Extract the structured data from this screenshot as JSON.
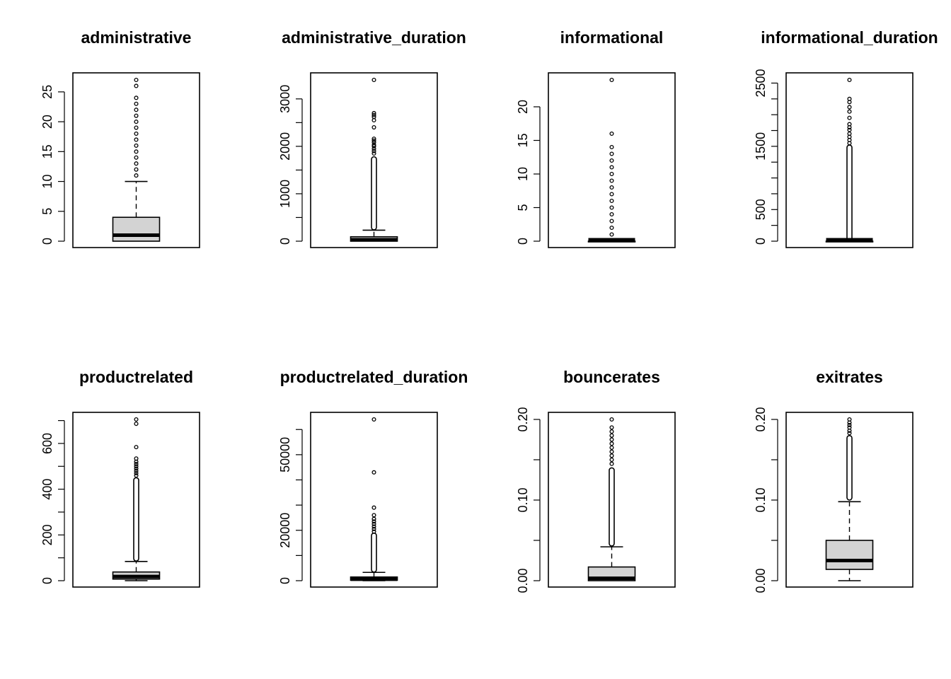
{
  "colors": {
    "box_fill": "#d3d3d3",
    "line": "#000000",
    "background": "#ffffff"
  },
  "chart_data": [
    {
      "type": "boxplot",
      "title": "administrative",
      "ylim": [
        0,
        27
      ],
      "y_ticks": [
        0,
        5,
        10,
        15,
        20,
        25
      ],
      "y_tick_labels": [
        "0",
        "5",
        "10",
        "15",
        "20",
        "25"
      ],
      "box": {
        "whisker_low": 0,
        "q1": 0,
        "median": 1,
        "q3": 4,
        "whisker_high": 10
      },
      "outliers": [
        11,
        12,
        13,
        14,
        15,
        16,
        17,
        18,
        19,
        20,
        21,
        22,
        23,
        24,
        26,
        27
      ]
    },
    {
      "type": "boxplot",
      "title": "administrative_duration",
      "ylim": [
        0,
        3400
      ],
      "y_ticks": [
        0,
        500,
        1000,
        1500,
        2000,
        2500,
        3000
      ],
      "y_tick_labels": [
        "0",
        "",
        "1000",
        "",
        "2000",
        "",
        "3000"
      ],
      "box": {
        "whisker_low": 0,
        "q1": 0,
        "median": 8,
        "q3": 93,
        "whisker_high": 232
      },
      "outlier_band": [
        240,
        1780
      ],
      "outliers": [
        1850,
        1900,
        1950,
        2000,
        2030,
        2080,
        2120,
        2160,
        2400,
        2550,
        2620,
        2660,
        2700,
        3400
      ]
    },
    {
      "type": "boxplot",
      "title": "informational",
      "ylim": [
        0,
        24
      ],
      "y_ticks": [
        0,
        5,
        10,
        15,
        20
      ],
      "y_tick_labels": [
        "0",
        "5",
        "10",
        "15",
        "20"
      ],
      "box": {
        "whisker_low": 0,
        "q1": 0,
        "median": 0,
        "q3": 0,
        "whisker_high": 0
      },
      "outliers": [
        1,
        2,
        3,
        4,
        5,
        6,
        7,
        8,
        9,
        10,
        11,
        12,
        13,
        14,
        16,
        24
      ]
    },
    {
      "type": "boxplot",
      "title": "informational_duration",
      "ylim": [
        0,
        2550
      ],
      "y_ticks": [
        0,
        250,
        500,
        750,
        1000,
        1250,
        1500,
        1750,
        2000,
        2250,
        2500
      ],
      "y_tick_labels": [
        "0",
        "",
        "500",
        "",
        "",
        "",
        "1500",
        "",
        "",
        "",
        "2500"
      ],
      "box": {
        "whisker_low": 0,
        "q1": 0,
        "median": 0,
        "q3": 0,
        "whisker_high": 0
      },
      "outlier_band": [
        1,
        1520
      ],
      "outliers": [
        1550,
        1600,
        1650,
        1700,
        1760,
        1800,
        1850,
        1950,
        2050,
        2120,
        2200,
        2250,
        2550
      ]
    },
    {
      "type": "boxplot",
      "title": "productrelated",
      "ylim": [
        0,
        705
      ],
      "y_ticks": [
        0,
        100,
        200,
        300,
        400,
        500,
        600,
        700
      ],
      "y_tick_labels": [
        "0",
        "",
        "200",
        "",
        "400",
        "",
        "600",
        ""
      ],
      "box": {
        "whisker_low": 0,
        "q1": 7,
        "median": 18,
        "q3": 38,
        "whisker_high": 84
      },
      "outlier_band": [
        86,
        450
      ],
      "outliers": [
        460,
        470,
        480,
        490,
        500,
        510,
        520,
        534,
        584,
        686,
        705
      ]
    },
    {
      "type": "boxplot",
      "title": "productrelated_duration",
      "ylim": [
        0,
        64000
      ],
      "y_ticks": [
        0,
        10000,
        20000,
        30000,
        40000,
        50000,
        60000
      ],
      "y_tick_labels": [
        "0",
        "",
        "20000",
        "",
        "",
        "50000",
        ""
      ],
      "box": {
        "whisker_low": 0,
        "q1": 184,
        "median": 598,
        "q3": 1464,
        "whisker_high": 3300
      },
      "outlier_band": [
        3400,
        18900
      ],
      "outliers": [
        19500,
        20500,
        21500,
        22500,
        23500,
        24500,
        26000,
        29000,
        43000,
        64000
      ]
    },
    {
      "type": "boxplot",
      "title": "bouncerates",
      "ylim": [
        0,
        0.2
      ],
      "y_ticks": [
        0,
        0.05,
        0.1,
        0.15,
        0.2
      ],
      "y_tick_labels": [
        "0.00",
        "",
        "0.10",
        "",
        "0.20"
      ],
      "box": {
        "whisker_low": 0,
        "q1": 0,
        "median": 0.003,
        "q3": 0.017,
        "whisker_high": 0.042
      },
      "outlier_band": [
        0.043,
        0.14
      ],
      "outliers": [
        0.145,
        0.15,
        0.155,
        0.16,
        0.165,
        0.17,
        0.175,
        0.18,
        0.185,
        0.19,
        0.2
      ]
    },
    {
      "type": "boxplot",
      "title": "exitrates",
      "ylim": [
        0,
        0.2
      ],
      "y_ticks": [
        0,
        0.05,
        0.1,
        0.15,
        0.2
      ],
      "y_tick_labels": [
        "0.00",
        "",
        "0.10",
        "",
        "0.20"
      ],
      "box": {
        "whisker_low": 0,
        "q1": 0.014,
        "median": 0.025,
        "q3": 0.05,
        "whisker_high": 0.098
      },
      "outlier_band": [
        0.1,
        0.18
      ],
      "outliers": [
        0.183,
        0.186,
        0.19,
        0.193,
        0.196,
        0.2
      ]
    }
  ]
}
